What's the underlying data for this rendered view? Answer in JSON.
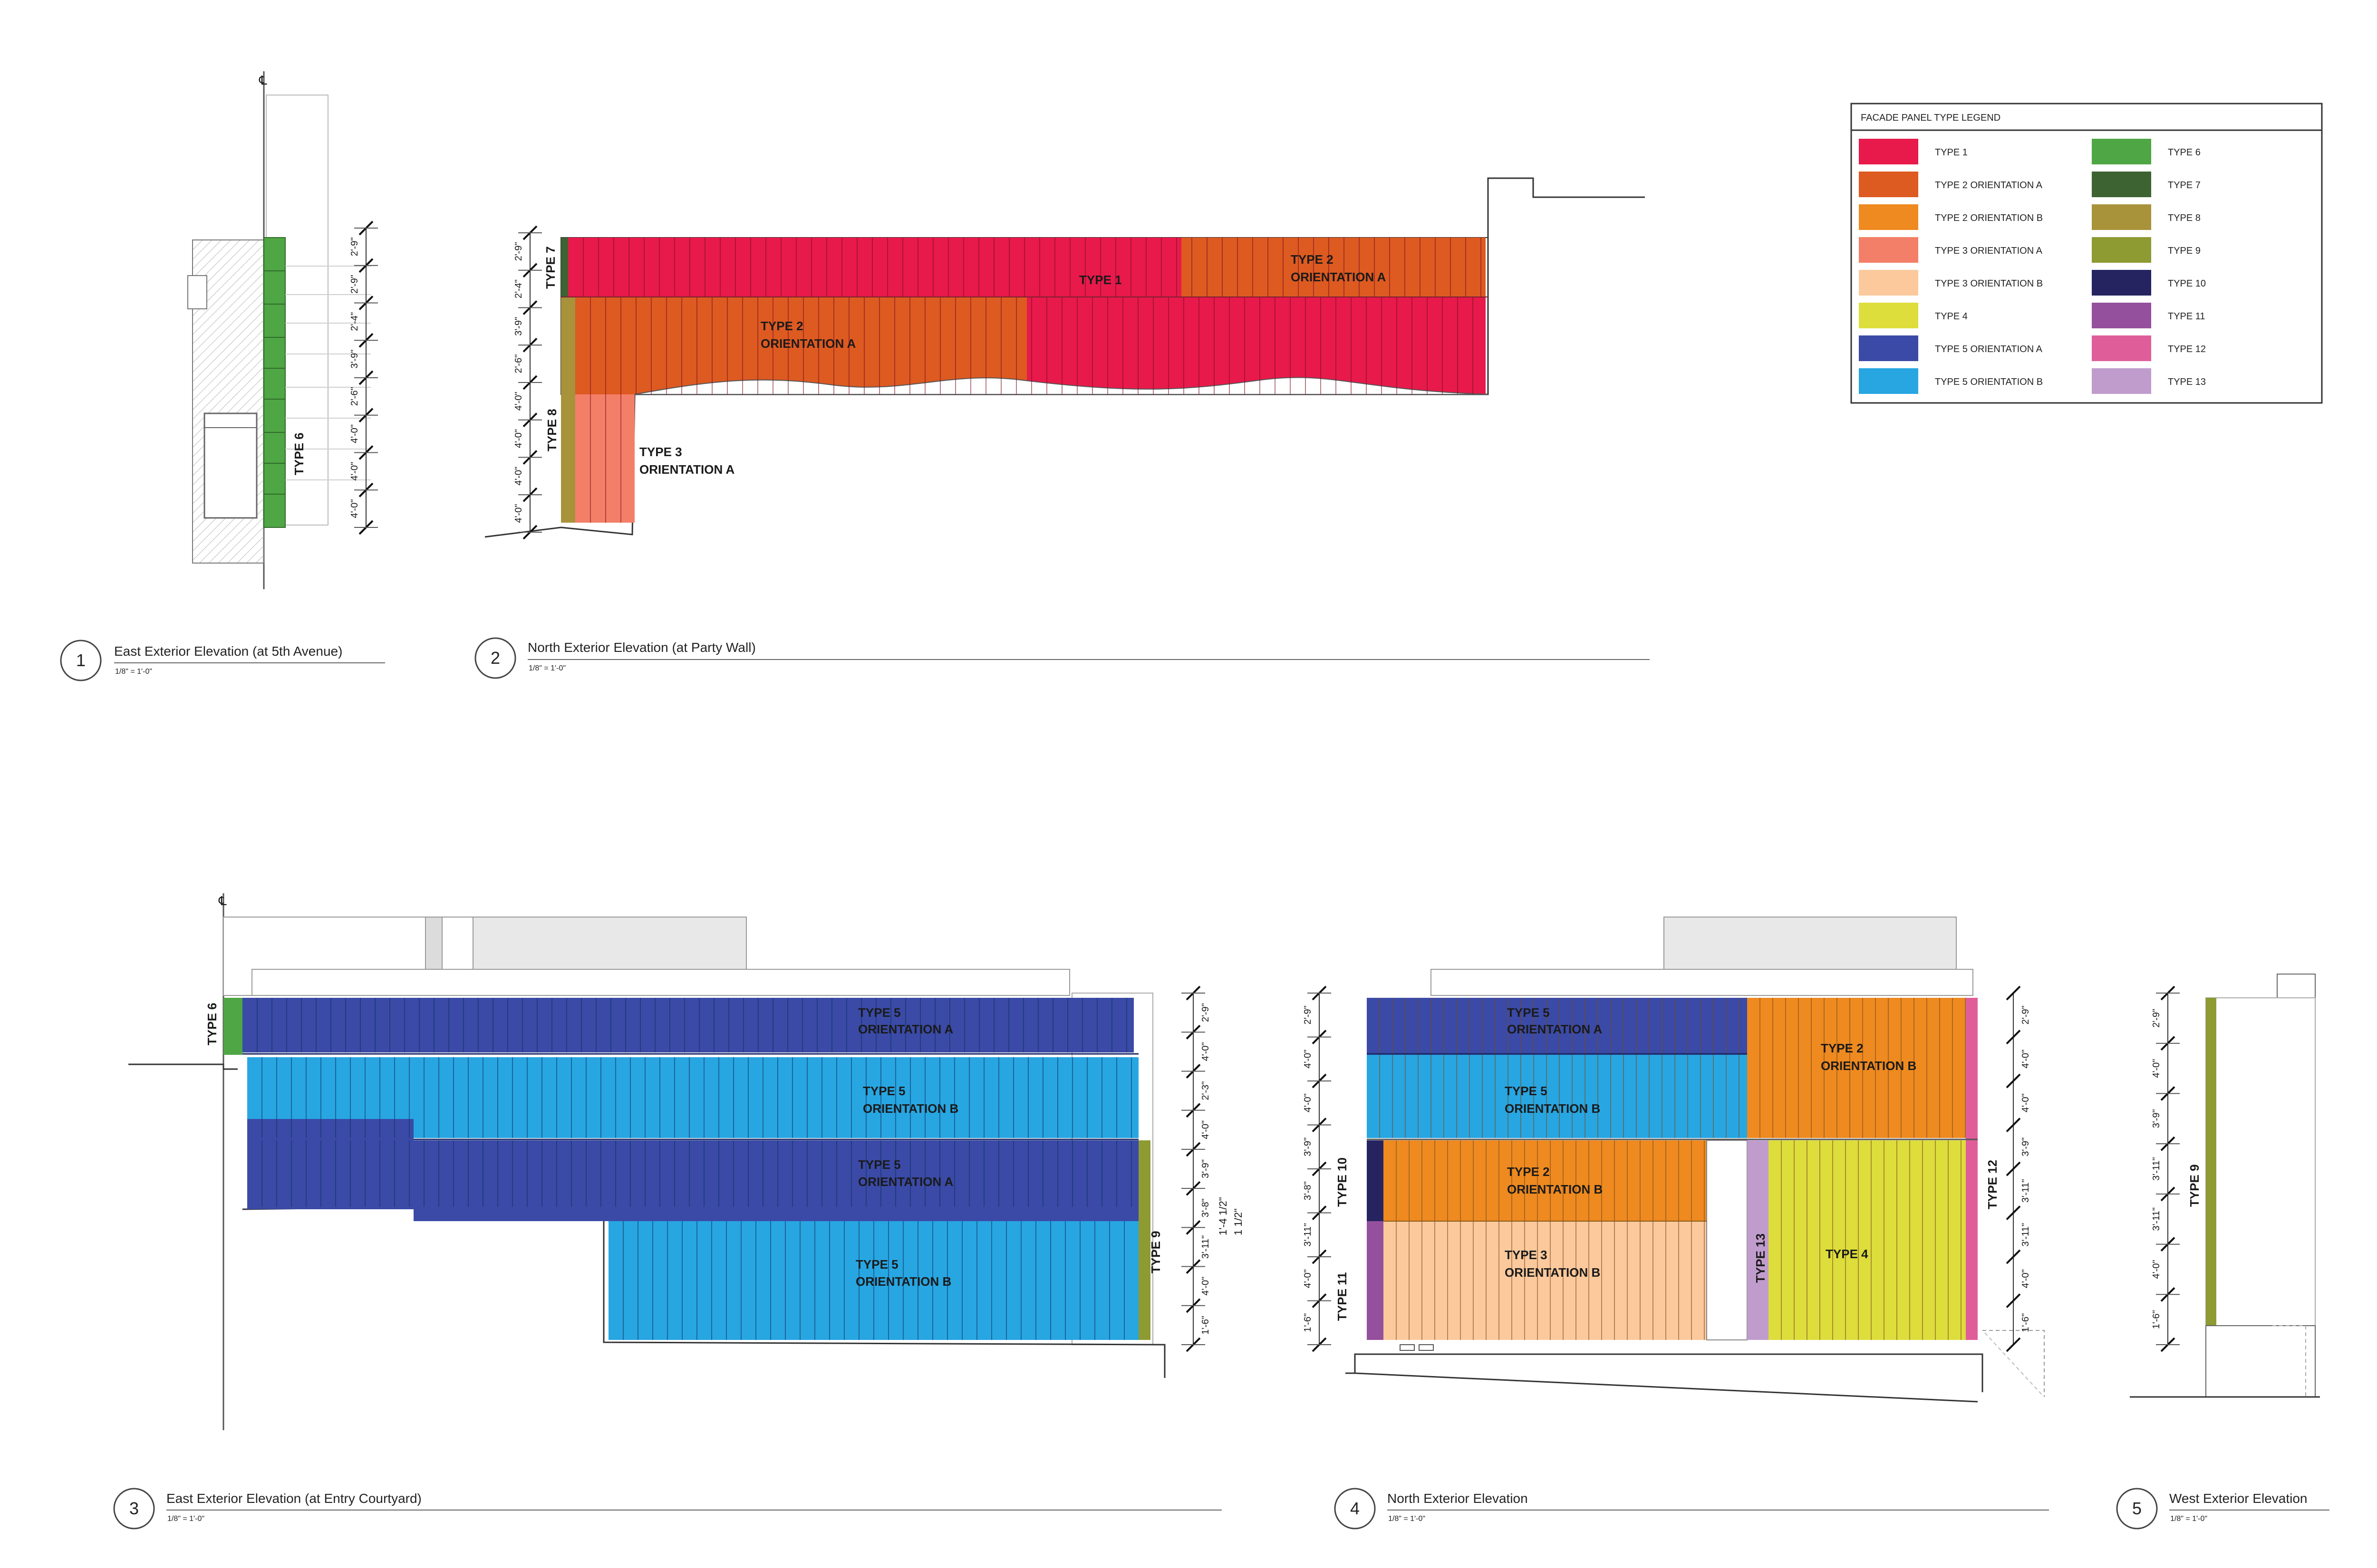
{
  "legend": {
    "title": "FACADE PANEL TYPE LEGEND",
    "items": [
      {
        "label": "TYPE 1",
        "color": "#e8194b"
      },
      {
        "label": "TYPE 2 ORIENTATION A",
        "color": "#dd5a21"
      },
      {
        "label": "TYPE 2 ORIENTATION B",
        "color": "#ee8a1f"
      },
      {
        "label": "TYPE 3 ORIENTATION A",
        "color": "#f47f68"
      },
      {
        "label": "TYPE 3 ORIENTATION B",
        "color": "#fbc99c"
      },
      {
        "label": "TYPE 4",
        "color": "#dddd3c"
      },
      {
        "label": "TYPE 5 ORIENTATION A",
        "color": "#3a4aa6"
      },
      {
        "label": "TYPE 5 ORIENTATION B",
        "color": "#27a6e2"
      },
      {
        "label": "TYPE 6",
        "color": "#4fa644"
      },
      {
        "label": "TYPE 7",
        "color": "#3d6332"
      },
      {
        "label": "TYPE 8",
        "color": "#a8923a"
      },
      {
        "label": "TYPE 9",
        "color": "#8e9a32"
      },
      {
        "label": "TYPE 10",
        "color": "#252461"
      },
      {
        "label": "TYPE 11",
        "color": "#94509c"
      },
      {
        "label": "TYPE 12",
        "color": "#df5e9a"
      },
      {
        "label": "TYPE 13",
        "color": "#c09ccd"
      }
    ]
  },
  "views": [
    {
      "number": "1",
      "title": "East Exterior Elevation (at 5th Avenue)",
      "scale": "1/8\" = 1'-0\""
    },
    {
      "number": "2",
      "title": "North Exterior Elevation (at Party Wall)",
      "scale": "1/8\" = 1'-0\""
    },
    {
      "number": "3",
      "title": "East Exterior Elevation (at Entry Courtyard)",
      "scale": "1/8\" = 1'-0\""
    },
    {
      "number": "4",
      "title": "North Exterior Elevation",
      "scale": "1/8\" = 1'-0\""
    },
    {
      "number": "5",
      "title": "West Exterior Elevation",
      "scale": "1/8\" = 1'-0\""
    }
  ],
  "elevation1": {
    "labels": [
      "TYPE 6"
    ],
    "dims": [
      "4'-0\"",
      "4'-0\"",
      "4'-0\"",
      "2'-6\"",
      "3'-9\"",
      "2'-4\"",
      "2'-9\"",
      "2'-9\""
    ]
  },
  "elevation2": {
    "labels": [
      "TYPE 7",
      "TYPE 8",
      "TYPE 1"
    ],
    "panel_labels": [
      {
        "line1": "TYPE 2",
        "line2": "ORIENTATION A"
      },
      {
        "line1": "TYPE 2",
        "line2": "ORIENTATION A"
      },
      {
        "line1": "TYPE 3",
        "line2": "ORIENTATION A"
      }
    ],
    "dims": [
      "4'-0\"",
      "4'-0\"",
      "4'-0\"",
      "4'-0\"",
      "2'-6\"",
      "3'-9\"",
      "2'-4\"",
      "2'-9\""
    ]
  },
  "elevation3": {
    "labels": [
      "TYPE 6",
      "TYPE 9"
    ],
    "panel_labels": [
      {
        "line1": "TYPE 5",
        "line2": "ORIENTATION A"
      },
      {
        "line1": "TYPE 5",
        "line2": "ORIENTATION B"
      },
      {
        "line1": "TYPE 5",
        "line2": "ORIENTATION A"
      },
      {
        "line1": "TYPE 5",
        "line2": "ORIENTATION B"
      }
    ],
    "dims": [
      "1'-6\"",
      "4'-0\"",
      "3'-11\"",
      "3'-8\"",
      "3'-9\"",
      "4'-0\"",
      "2'-3\"",
      "4'-0\"",
      "2'-9\""
    ],
    "dims2": [
      "1'-4 1/2\"",
      "1 1/2\""
    ]
  },
  "elevation4": {
    "labels": [
      "TYPE 10",
      "TYPE 11",
      "TYPE 13",
      "TYPE 12",
      "TYPE 4"
    ],
    "panel_labels": [
      {
        "line1": "TYPE 5",
        "line2": "ORIENTATION A"
      },
      {
        "line1": "TYPE 5",
        "line2": "ORIENTATION B"
      },
      {
        "line1": "TYPE 2",
        "line2": "ORIENTATION B"
      },
      {
        "line1": "TYPE 3",
        "line2": "ORIENTATION B"
      },
      {
        "line1": "TYPE 2",
        "line2": "ORIENTATION B"
      }
    ],
    "dims_left": [
      "1'-6\"",
      "4'-0\"",
      "3'-11\"",
      "3'-8\"",
      "3'-9\"",
      "4'-0\"",
      "4'-0\"",
      "2'-9\""
    ],
    "dims_right": [
      "1'-6\"",
      "4'-0\"",
      "3'-11\"",
      "3'-11\"",
      "3'-9\"",
      "4'-0\"",
      "4'-0\"",
      "2'-9\""
    ]
  },
  "elevation5": {
    "labels": [
      "TYPE 9"
    ],
    "dims": [
      "1'-6\"",
      "4'-0\"",
      "3'-11\"",
      "3'-11\"",
      "3'-9\"",
      "4'-0\"",
      "2'-9\""
    ]
  }
}
